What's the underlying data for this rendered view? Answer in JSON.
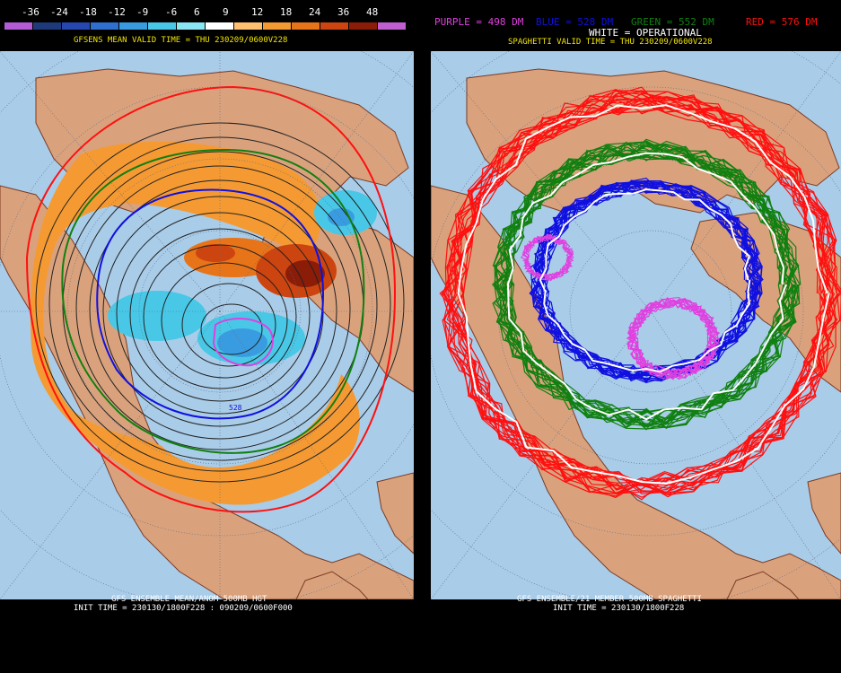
{
  "left": {
    "legend": {
      "labels": [
        "-36",
        "-24",
        "-18",
        "-12",
        "-9",
        "-6",
        "6",
        "9",
        "12",
        "18",
        "24",
        "36",
        "48"
      ],
      "colors": [
        "#b45cd6",
        "#1e3a7a",
        "#2548b0",
        "#2f6fd0",
        "#3a9ce0",
        "#48c8e6",
        "#8ae6f2",
        "#ffffff",
        "#ffc070",
        "#f59a33",
        "#e8741a",
        "#cc4410",
        "#8a1c08",
        "#c060d0"
      ]
    },
    "title": "GFSENS MEAN VALID TIME = THU 230209/0600V228",
    "footer_line1": "GFS ENSEMBLE MEAN/ANOM 500MB HGT",
    "footer_line2": "INIT TIME = 230130/1800F228 : 090209/0600F000",
    "contour_label": "528"
  },
  "right": {
    "legend_purple": "PURPLE = 498 DM",
    "legend_blue": "BLUE = 528 DM",
    "legend_green": "GREEN = 552 DM",
    "legend_red": "RED = 576 DM",
    "legend_white": "WHITE = OPERATIONAL",
    "title": "SPAGHETTI VALID TIME = THU 230209/0600V228",
    "footer_line1": "GFS ENSEMBLE/21 MEMBER 500MB SPAGHETTI",
    "footer_line2": "INIT TIME = 230130/1800F228"
  },
  "colors": {
    "ocean": "#a9cce8",
    "land": "#d9a27d",
    "coast": "#7a3b24",
    "purple": "#e040e0",
    "blue": "#1010e0",
    "green": "#108010",
    "red": "#ff1010",
    "white": "#ffffff"
  }
}
